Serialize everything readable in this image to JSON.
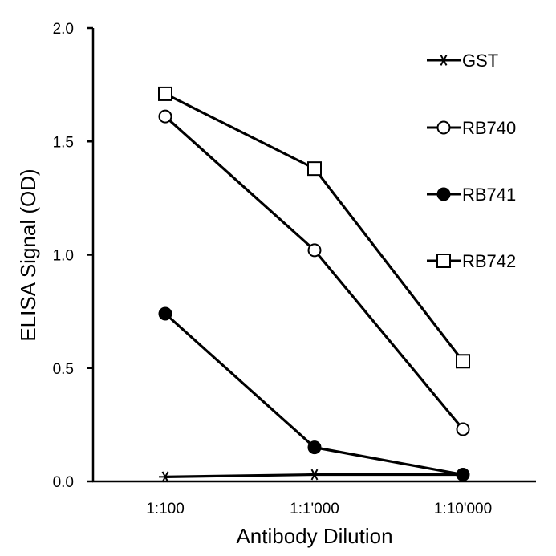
{
  "chart_data": {
    "type": "line",
    "title": "",
    "xlabel": "Antibody Dilution",
    "ylabel": "ELISA Signal (OD)",
    "categories": [
      "1:100",
      "1:1'000",
      "1:10'000"
    ],
    "ylim": [
      0,
      2.0
    ],
    "yticks": [
      "0.0",
      "0.5",
      "1.0",
      "1.5",
      "2.0"
    ],
    "grid": false,
    "legend_position": "top-right",
    "series": [
      {
        "name": "GST",
        "marker": "asterisk",
        "values": [
          0.02,
          0.03,
          0.03
        ]
      },
      {
        "name": "RB740",
        "marker": "open-circle",
        "values": [
          1.61,
          1.02,
          0.23
        ]
      },
      {
        "name": "RB741",
        "marker": "filled-circle",
        "values": [
          0.74,
          0.15,
          0.03
        ]
      },
      {
        "name": "RB742",
        "marker": "open-square",
        "values": [
          1.71,
          1.38,
          0.53
        ]
      }
    ]
  }
}
